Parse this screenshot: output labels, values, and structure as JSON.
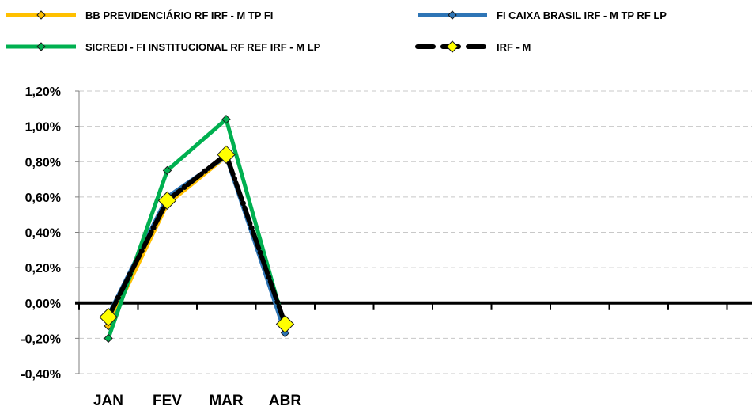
{
  "chart_data": {
    "type": "line",
    "title": "",
    "xlabel": "",
    "ylabel": "",
    "categories": [
      "JAN",
      "FEV",
      "MAR",
      "ABR"
    ],
    "ylim": [
      -0.4,
      1.2
    ],
    "yticks": [
      -0.4,
      -0.2,
      0.0,
      0.2,
      0.4,
      0.6,
      0.8,
      1.0,
      1.2
    ],
    "ytick_labels": [
      "-0,40%",
      "-0,20%",
      "0,00%",
      "0,20%",
      "0,40%",
      "0,60%",
      "0,80%",
      "1,00%",
      "1,20%"
    ],
    "x_slots": 12,
    "grid": "horizontal-dashed",
    "legend_position": "top",
    "series": [
      {
        "name": "BB PREVIDENCIÁRIO RF IRF - M TP FI",
        "values": [
          -0.13,
          0.56,
          0.83,
          -0.14
        ],
        "color": "#FFC000",
        "marker": "diamond",
        "marker_color": "#FFC000"
      },
      {
        "name": "FI CAIXA BRASIL IRF - M TP RF LP",
        "values": [
          -0.07,
          0.6,
          0.83,
          -0.17
        ],
        "color": "#2E75B6",
        "marker": "diamond",
        "marker_color": "#2E75B6"
      },
      {
        "name": "SICREDI - FI INSTITUCIONAL RF REF IRF - M LP",
        "values": [
          -0.2,
          0.75,
          1.04,
          -0.14
        ],
        "color": "#00B050",
        "marker": "diamond",
        "marker_color": "#00B050"
      },
      {
        "name": "IRF - M",
        "values": [
          -0.08,
          0.58,
          0.84,
          -0.12
        ],
        "color": "#000000",
        "marker": "diamond",
        "marker_color": "#FFFF00",
        "dashed": true
      }
    ]
  }
}
